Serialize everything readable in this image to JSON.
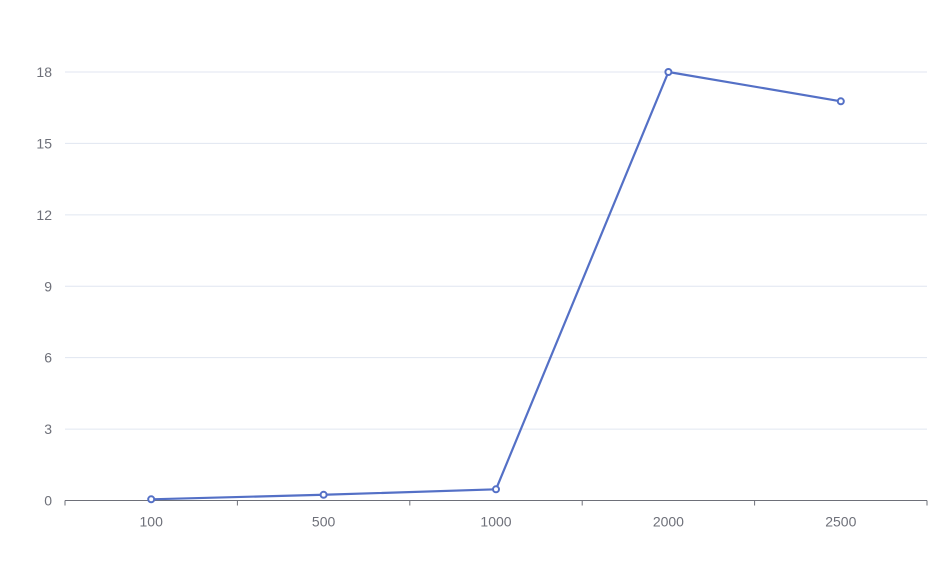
{
  "chart_data": {
    "type": "line",
    "categories": [
      "100",
      "500",
      "1000",
      "2000",
      "2500"
    ],
    "series": [
      {
        "values": [
          0.05,
          0.24,
          0.47,
          18.0,
          16.77
        ],
        "color": "#5470c6"
      }
    ],
    "title": "",
    "xlabel": "",
    "ylabel": "",
    "ylim": [
      0,
      18
    ],
    "yticks": [
      0,
      3,
      6,
      9,
      12,
      15,
      18
    ],
    "grid": true,
    "colors": {
      "grid": "#e0e6f1",
      "axis": "#6e7079",
      "line": "#5470c6"
    }
  }
}
